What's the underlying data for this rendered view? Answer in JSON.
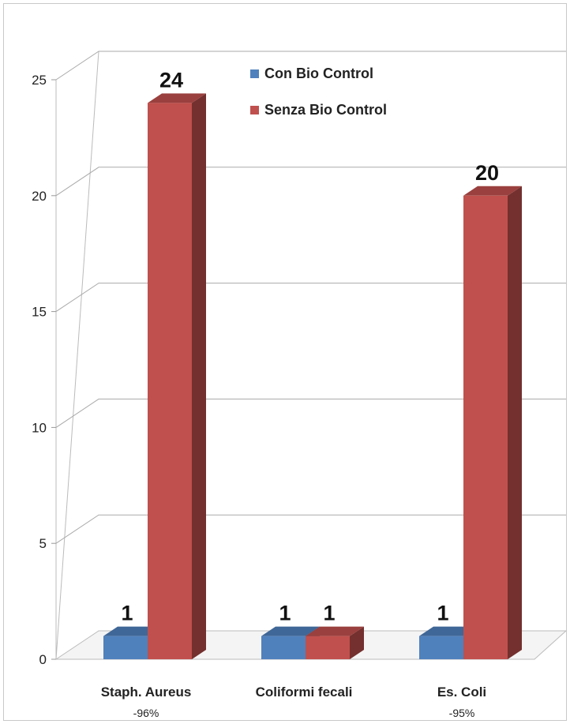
{
  "chart_data": {
    "type": "bar",
    "title": "",
    "xlabel": "",
    "ylabel": "",
    "ylim": [
      0,
      25
    ],
    "yticks": [
      0,
      5,
      10,
      15,
      20,
      25
    ],
    "grid": true,
    "legend_position": "top-center",
    "categories": [
      "Staph. Aureus",
      "Coliformi fecali",
      "Es. Coli"
    ],
    "category_sublabels": [
      "-96%",
      "",
      "-95%"
    ],
    "series": [
      {
        "name": "Con Bio Control",
        "values": [
          1,
          1,
          1
        ],
        "color": "#4f81bd"
      },
      {
        "name": "Senza Bio Control",
        "values": [
          24,
          1,
          20
        ],
        "color": "#c0504d"
      }
    ],
    "data_labels": [
      "1",
      "24",
      "1",
      "1",
      "1",
      "20"
    ]
  }
}
